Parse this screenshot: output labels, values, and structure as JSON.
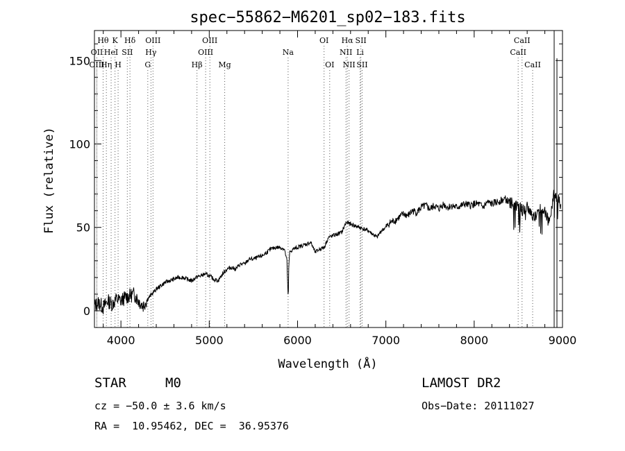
{
  "chart_data": {
    "type": "line",
    "title": "spec−55862−M6201_sp02−183.fits",
    "xlabel": "Wavelength (Å)",
    "ylabel": "Flux (relative)",
    "xlim": [
      3700,
      9000
    ],
    "ylim": [
      -10,
      168
    ],
    "x_ticks": [
      4000,
      5000,
      6000,
      7000,
      8000,
      9000
    ],
    "y_ticks": [
      0,
      50,
      100,
      150
    ],
    "grid": false,
    "series": [
      {
        "x": [
          3700,
          3750,
          3800,
          3850,
          3900,
          3950,
          4000,
          4050,
          4100,
          4150,
          4200,
          4250,
          4300,
          4350,
          4400,
          4450,
          4500,
          4550,
          4600,
          4650,
          4700,
          4750,
          4800,
          4850,
          4900,
          4950,
          5000,
          5050,
          5100,
          5150,
          5200,
          5250,
          5300,
          5350,
          5400,
          5450,
          5500,
          5550,
          5600,
          5650,
          5700,
          5750,
          5800,
          5850,
          5880,
          5890,
          5895,
          5900,
          5910,
          5950,
          6000,
          6050,
          6100,
          6150,
          6200,
          6250,
          6300,
          6350,
          6400,
          6450,
          6500,
          6550,
          6600,
          6650,
          6700,
          6750,
          6800,
          6850,
          6900,
          6950,
          7000,
          7050,
          7100,
          7150,
          7200,
          7250,
          7300,
          7350,
          7400,
          7450,
          7500,
          7550,
          7600,
          7650,
          7700,
          7750,
          7800,
          7850,
          7900,
          7950,
          8000,
          8050,
          8100,
          8150,
          8200,
          8250,
          8300,
          8350,
          8400,
          8450,
          8500,
          8550,
          8600,
          8650,
          8700,
          8750,
          8800,
          8850,
          8900,
          8950,
          8980
        ],
        "y": [
          3,
          5,
          2,
          6,
          4,
          7,
          6,
          8,
          9,
          10,
          6,
          3,
          7,
          10,
          13,
          15,
          17,
          18,
          19,
          20,
          20,
          19,
          18,
          20,
          21,
          22,
          21,
          19,
          18,
          22,
          25,
          26,
          25,
          28,
          28,
          31,
          31,
          32,
          33,
          35,
          37,
          38,
          38,
          37,
          30,
          12,
          8,
          25,
          35,
          37,
          38,
          39,
          40,
          41,
          35,
          37,
          38,
          44,
          45,
          46,
          47,
          53,
          52,
          51,
          50,
          49,
          48,
          46,
          44,
          48,
          50,
          53,
          54,
          56,
          58,
          57,
          60,
          59,
          62,
          63,
          61,
          63,
          61,
          64,
          62,
          63,
          62,
          63,
          64,
          63,
          64,
          64,
          62,
          65,
          64,
          65,
          66,
          67,
          65,
          64,
          63,
          60,
          62,
          58,
          56,
          62,
          60,
          52,
          70,
          68,
          62
        ]
      }
    ],
    "lines": [
      {
        "name": "Hθ",
        "x": 3798,
        "row": 0
      },
      {
        "name": "K",
        "x": 3933,
        "row": 0
      },
      {
        "name": "Hδ",
        "x": 4102,
        "row": 0
      },
      {
        "name": "OIII",
        "x": 4363,
        "row": 0
      },
      {
        "name": "OIII",
        "x": 5007,
        "row": 0
      },
      {
        "name": "OI",
        "x": 6300,
        "row": 0
      },
      {
        "name": "Hα",
        "x": 6563,
        "row": 0
      },
      {
        "name": "SII",
        "x": 6717,
        "row": 0
      },
      {
        "name": "CaII",
        "x": 8542,
        "row": 0
      },
      {
        "name": "OII",
        "x": 3727,
        "row": 1
      },
      {
        "name": "HeI",
        "x": 3889,
        "row": 1
      },
      {
        "name": "SII",
        "x": 4072,
        "row": 1
      },
      {
        "name": "Hγ",
        "x": 4340,
        "row": 1
      },
      {
        "name": "OIII",
        "x": 4959,
        "row": 1
      },
      {
        "name": "Na",
        "x": 5893,
        "row": 1
      },
      {
        "name": "NII",
        "x": 6548,
        "row": 1
      },
      {
        "name": "Li",
        "x": 6708,
        "row": 1
      },
      {
        "name": "CaII",
        "x": 8498,
        "row": 1
      },
      {
        "name": "OIII",
        "x": 3727,
        "row": 2
      },
      {
        "name": "Hη",
        "x": 3835,
        "row": 2
      },
      {
        "name": "H",
        "x": 3968,
        "row": 2
      },
      {
        "name": "G",
        "x": 4304,
        "row": 2
      },
      {
        "name": "Hβ",
        "x": 4861,
        "row": 2
      },
      {
        "name": "Mg",
        "x": 5175,
        "row": 2
      },
      {
        "name": "OI",
        "x": 6364,
        "row": 2
      },
      {
        "name": "NII",
        "x": 6583,
        "row": 2
      },
      {
        "name": "SII",
        "x": 6731,
        "row": 2
      },
      {
        "name": "CaII",
        "x": 8662,
        "row": 2
      }
    ]
  },
  "info": {
    "class": "STAR",
    "subclass": "M0",
    "survey": "LAMOST DR2",
    "cz": "cz = −50.0 ± 3.6 km/s",
    "obs_date": "Obs−Date: 20111027",
    "radec": "RA =  10.95462, DEC =  36.95376"
  }
}
